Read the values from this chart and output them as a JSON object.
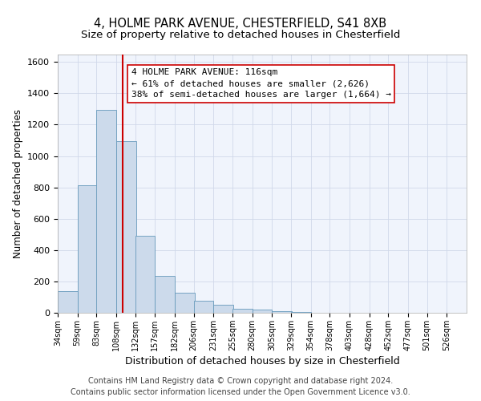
{
  "title_line1": "4, HOLME PARK AVENUE, CHESTERFIELD, S41 8XB",
  "title_line2": "Size of property relative to detached houses in Chesterfield",
  "xlabel": "Distribution of detached houses by size in Chesterfield",
  "ylabel": "Number of detached properties",
  "bar_color": "#ccdaeb",
  "bar_edge_color": "#6699bb",
  "bin_labels": [
    "34sqm",
    "59sqm",
    "83sqm",
    "108sqm",
    "132sqm",
    "157sqm",
    "182sqm",
    "206sqm",
    "231sqm",
    "255sqm",
    "280sqm",
    "305sqm",
    "329sqm",
    "354sqm",
    "378sqm",
    "403sqm",
    "428sqm",
    "452sqm",
    "477sqm",
    "501sqm",
    "526sqm"
  ],
  "bar_values": [
    140,
    815,
    1295,
    1095,
    490,
    235,
    130,
    75,
    50,
    28,
    20,
    10,
    5,
    2,
    0,
    0,
    0,
    0,
    0,
    0,
    0
  ],
  "ylim": [
    0,
    1650
  ],
  "yticks": [
    0,
    200,
    400,
    600,
    800,
    1000,
    1200,
    1400,
    1600
  ],
  "bin_edges": [
    34,
    59,
    83,
    108,
    132,
    157,
    182,
    206,
    231,
    255,
    280,
    305,
    329,
    354,
    378,
    403,
    428,
    452,
    477,
    501,
    526,
    551
  ],
  "red_line_x": 116,
  "annotation_title": "4 HOLME PARK AVENUE: 116sqm",
  "annotation_line2": "← 61% of detached houses are smaller (2,626)",
  "annotation_line3": "38% of semi-detached houses are larger (1,664) →",
  "red_line_color": "#cc0000",
  "grid_color": "#d0d8ea",
  "bg_color": "#f0f4fc",
  "footer_line1": "Contains HM Land Registry data © Crown copyright and database right 2024.",
  "footer_line2": "Contains public sector information licensed under the Open Government Licence v3.0.",
  "title_fontsize": 10.5,
  "subtitle_fontsize": 9.5,
  "annotation_fontsize": 8,
  "footer_fontsize": 7,
  "ylabel_fontsize": 8.5,
  "xlabel_fontsize": 9
}
